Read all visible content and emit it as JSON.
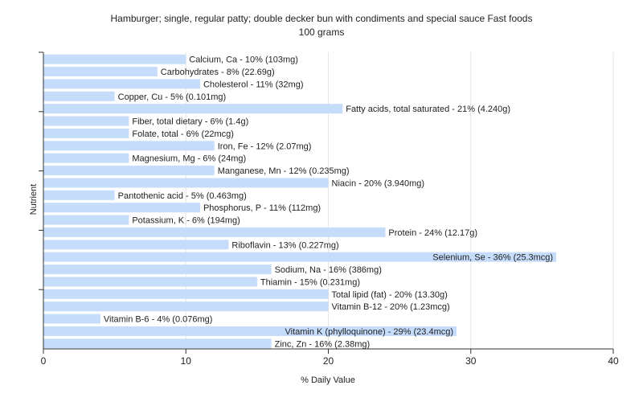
{
  "chart_data": {
    "type": "bar",
    "orientation": "horizontal",
    "title": "Hamburger; single, regular patty; double decker bun with condiments and special sauce Fast foods",
    "subtitle": "100 grams",
    "xlabel": "% Daily Value",
    "ylabel": "Nutrient",
    "xlim": [
      0,
      40
    ],
    "xticks": [
      0,
      10,
      20,
      30,
      40
    ],
    "grid": true,
    "bar_color": "#c6dcfb",
    "categories": [
      "Calcium, Ca",
      "Carbohydrates",
      "Cholesterol",
      "Copper, Cu",
      "Fatty acids, total saturated",
      "Fiber, total dietary",
      "Folate, total",
      "Iron, Fe",
      "Magnesium, Mg",
      "Manganese, Mn",
      "Niacin",
      "Pantothenic acid",
      "Phosphorus, P",
      "Potassium, K",
      "Protein",
      "Riboflavin",
      "Selenium, Se",
      "Sodium, Na",
      "Thiamin",
      "Total lipid (fat)",
      "Vitamin B-12",
      "Vitamin B-6",
      "Vitamin K (phylloquinone)",
      "Zinc, Zn"
    ],
    "values": [
      10,
      8,
      11,
      5,
      21,
      6,
      6,
      12,
      6,
      12,
      20,
      5,
      11,
      6,
      24,
      13,
      36,
      16,
      15,
      20,
      20,
      4,
      29,
      16
    ],
    "labels": [
      "Calcium, Ca - 10% (103mg)",
      "Carbohydrates - 8% (22.69g)",
      "Cholesterol - 11% (32mg)",
      "Copper, Cu - 5% (0.101mg)",
      "Fatty acids, total saturated - 21% (4.240g)",
      "Fiber, total dietary - 6% (1.4g)",
      "Folate, total - 6% (22mcg)",
      "Iron, Fe - 12% (2.07mg)",
      "Magnesium, Mg - 6% (24mg)",
      "Manganese, Mn - 12% (0.235mg)",
      "Niacin - 20% (3.940mg)",
      "Pantothenic acid - 5% (0.463mg)",
      "Phosphorus, P - 11% (112mg)",
      "Potassium, K - 6% (194mg)",
      "Protein - 24% (12.17g)",
      "Riboflavin - 13% (0.227mg)",
      "Selenium, Se - 36% (25.3mcg)",
      "Sodium, Na - 16% (386mg)",
      "Thiamin - 15% (0.231mg)",
      "Total lipid (fat) - 20% (13.30g)",
      "Vitamin B-12 - 20% (1.23mcg)",
      "Vitamin B-6 - 4% (0.076mg)",
      "Vitamin K (phylloquinone) - 29% (23.4mcg)",
      "Zinc, Zn - 16% (2.38mg)"
    ]
  }
}
